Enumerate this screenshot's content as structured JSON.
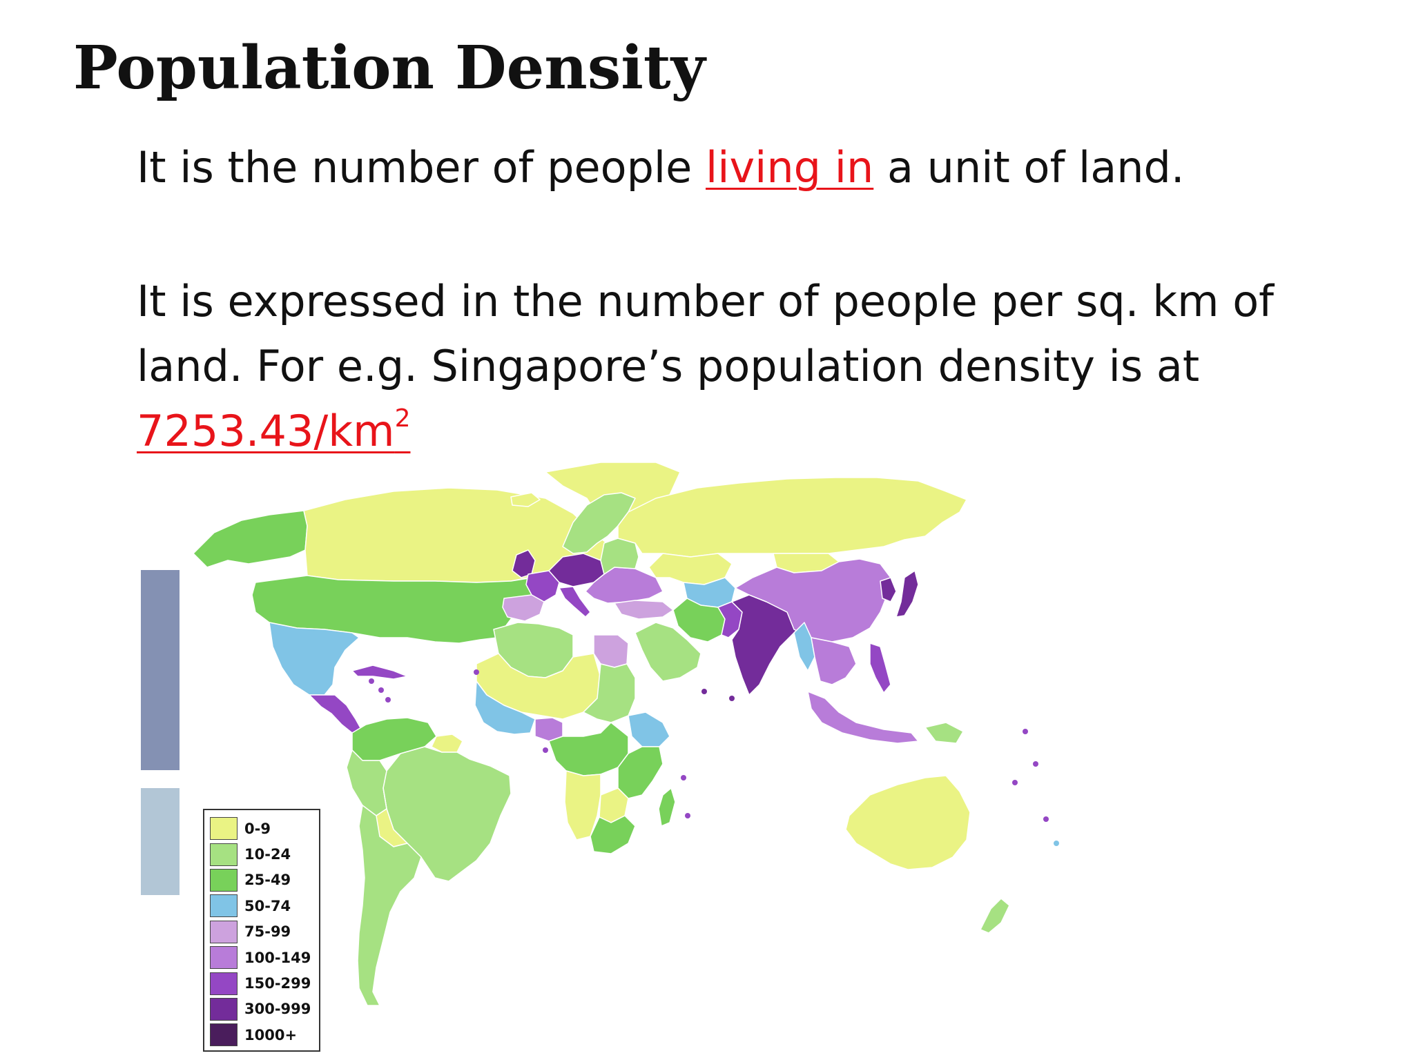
{
  "slide": {
    "title": "Population Density",
    "line1": {
      "before": "It is the number of people ",
      "highlight": "living in",
      "after": " a unit of land."
    },
    "line2": {
      "text_a": "It is expressed in the number of people per sq. km of",
      "text_b": "land. For e.g. Singapore’s population density is at",
      "value": "7253.43/km",
      "superscript": "2"
    }
  },
  "colors": {
    "text": "#111111",
    "highlight": "#e8141a"
  },
  "legend": {
    "items": [
      {
        "label": "0-9",
        "color": "#eaf384"
      },
      {
        "label": "10-24",
        "color": "#a6e182"
      },
      {
        "label": "25-49",
        "color": "#78d15a"
      },
      {
        "label": "50-74",
        "color": "#80c4e6"
      },
      {
        "label": "75-99",
        "color": "#cda2de"
      },
      {
        "label": "100-149",
        "color": "#b87cd9"
      },
      {
        "label": "150-299",
        "color": "#9447c4"
      },
      {
        "label": "300-999",
        "color": "#732c9a"
      },
      {
        "label": "1000+",
        "color": "#4a1d5c"
      }
    ]
  },
  "map": {
    "regions": [
      {
        "name": "canada",
        "color": "#eaf384"
      },
      {
        "name": "alaska",
        "color": "#78d15a"
      },
      {
        "name": "greenland",
        "color": "#eaf384"
      },
      {
        "name": "usa",
        "color": "#78d15a"
      },
      {
        "name": "mexico",
        "color": "#80c4e6"
      },
      {
        "name": "central-america",
        "color": "#9447c4"
      },
      {
        "name": "caribbean",
        "color": "#9447c4"
      },
      {
        "name": "colombia-venezuela",
        "color": "#78d15a"
      },
      {
        "name": "guianas",
        "color": "#eaf384"
      },
      {
        "name": "brazil",
        "color": "#a6e182"
      },
      {
        "name": "peru",
        "color": "#a6e182"
      },
      {
        "name": "bolivia",
        "color": "#eaf384"
      },
      {
        "name": "southern-cone",
        "color": "#a6e182"
      },
      {
        "name": "iceland",
        "color": "#eaf384"
      },
      {
        "name": "scandinavia",
        "color": "#a6e182"
      },
      {
        "name": "uk",
        "color": "#732c9a"
      },
      {
        "name": "iberia",
        "color": "#cda2de"
      },
      {
        "name": "france",
        "color": "#9447c4"
      },
      {
        "name": "central-europe",
        "color": "#732c9a"
      },
      {
        "name": "italy",
        "color": "#9447c4"
      },
      {
        "name": "eastern-europe",
        "color": "#b87cd9"
      },
      {
        "name": "baltics-belarus",
        "color": "#a6e182"
      },
      {
        "name": "russia",
        "color": "#eaf384"
      },
      {
        "name": "kazakhstan",
        "color": "#eaf384"
      },
      {
        "name": "mongolia",
        "color": "#eaf384"
      },
      {
        "name": "turkey",
        "color": "#cda2de"
      },
      {
        "name": "iran",
        "color": "#78d15a"
      },
      {
        "name": "arabia",
        "color": "#a6e182"
      },
      {
        "name": "central-asia",
        "color": "#80c4e6"
      },
      {
        "name": "pakistan",
        "color": "#9447c4"
      },
      {
        "name": "india",
        "color": "#732c9a"
      },
      {
        "name": "china",
        "color": "#b87cd9"
      },
      {
        "name": "korea",
        "color": "#732c9a"
      },
      {
        "name": "japan",
        "color": "#732c9a"
      },
      {
        "name": "southeast-asia",
        "color": "#b87cd9"
      },
      {
        "name": "myanmar",
        "color": "#80c4e6"
      },
      {
        "name": "philippines",
        "color": "#9447c4"
      },
      {
        "name": "indonesia",
        "color": "#b87cd9"
      },
      {
        "name": "papua",
        "color": "#a6e182"
      },
      {
        "name": "australia",
        "color": "#eaf384"
      },
      {
        "name": "new-zealand",
        "color": "#a6e182"
      },
      {
        "name": "north-africa-west",
        "color": "#a6e182"
      },
      {
        "name": "sahara",
        "color": "#eaf384"
      },
      {
        "name": "egypt",
        "color": "#cda2de"
      },
      {
        "name": "sudan",
        "color": "#a6e182"
      },
      {
        "name": "west-africa",
        "color": "#80c4e6"
      },
      {
        "name": "nigeria",
        "color": "#b87cd9"
      },
      {
        "name": "ethiopia",
        "color": "#80c4e6"
      },
      {
        "name": "central-africa",
        "color": "#78d15a"
      },
      {
        "name": "east-africa",
        "color": "#78d15a"
      },
      {
        "name": "angola-namibia",
        "color": "#eaf384"
      },
      {
        "name": "botswana",
        "color": "#eaf384"
      },
      {
        "name": "southern-africa",
        "color": "#78d15a"
      },
      {
        "name": "madagascar",
        "color": "#78d15a"
      }
    ]
  }
}
